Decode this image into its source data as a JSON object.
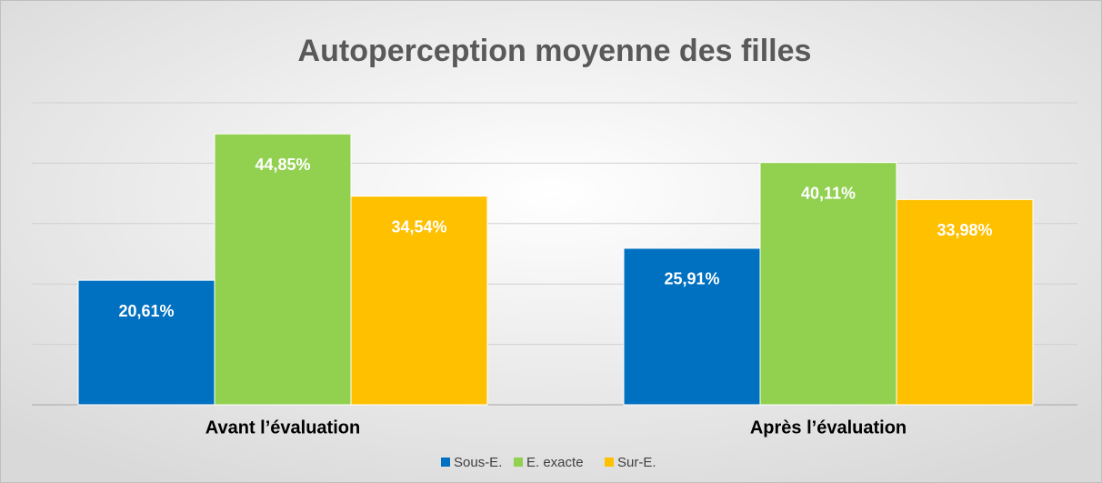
{
  "chart_data": {
    "type": "bar",
    "title": "Autoperception moyenne des filles",
    "categories": [
      "Avant l’évaluation",
      "Après l’évaluation"
    ],
    "series": [
      {
        "name": "Sous-E.",
        "color": "#0070c0",
        "values": [
          20.61,
          25.91
        ],
        "value_labels": [
          "20,61%",
          "25,91%"
        ]
      },
      {
        "name": "E. exacte",
        "color": "#92d050",
        "values": [
          44.85,
          40.11
        ],
        "value_labels": [
          "44,85%",
          "40,11%"
        ]
      },
      {
        "name": "Sur-E.",
        "color": "#ffc000",
        "values": [
          34.54,
          33.98
        ],
        "value_labels": [
          "34,54%",
          "33,98%"
        ]
      }
    ],
    "ylim": [
      0,
      50
    ],
    "yticks": [
      0,
      10,
      20,
      30,
      40,
      50
    ],
    "grid": true,
    "legend": "bottom"
  }
}
